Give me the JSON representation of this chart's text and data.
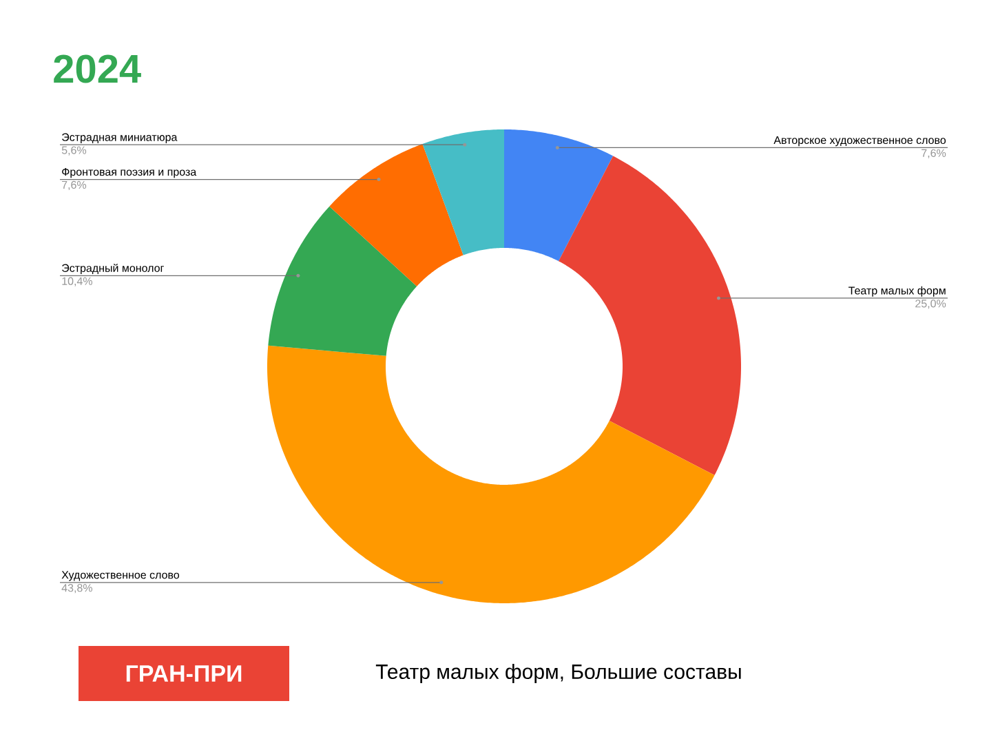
{
  "chart_data": {
    "type": "donut",
    "title": "2024",
    "categories": [
      "Авторское художественное слово",
      "Театр малых форм",
      "Художественное слово",
      "Эстрадный монолог",
      "Фронтовая поэзия и проза",
      "Эстрадная миниатюра"
    ],
    "values": [
      7.6,
      25.0,
      43.8,
      10.4,
      7.6,
      5.6
    ],
    "value_labels": [
      "7,6%",
      "25,0%",
      "43,8%",
      "10,4%",
      "7,6%",
      "5,6%"
    ],
    "colors": [
      "#4285f4",
      "#ea4335",
      "#ff9900",
      "#34a853",
      "#ff6d01",
      "#46bdc6"
    ],
    "annotations": [
      "ГРАН-ПРИ",
      "Театр малых форм, Большие составы"
    ]
  }
}
